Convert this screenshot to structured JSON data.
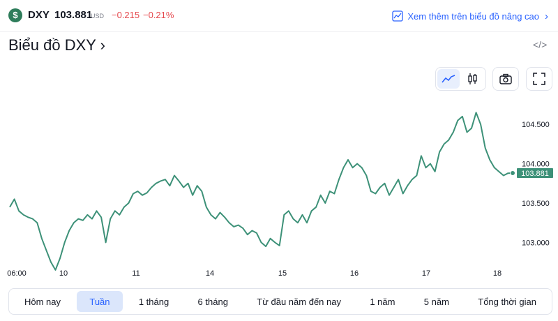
{
  "header": {
    "icon": "dollar-icon",
    "symbol": "DXY",
    "price": "103.881",
    "currency": "USD",
    "change": "−0.215",
    "change_percent": "−0.21%",
    "advanced_chart_label": "Xem thêm trên biểu đồ nâng cao"
  },
  "title": "Biểu đồ DXY ›",
  "embed_icon": "</>",
  "toolbar": [
    "line-chart-icon",
    "candles-icon",
    "camera-icon",
    "fullscreen-icon"
  ],
  "colors": {
    "line": "#3d9178",
    "negative": "#e5484d",
    "accent": "#2962ff",
    "active_range_bg": "#dbe6fb"
  },
  "chart_data": {
    "type": "line",
    "x_labels": [
      "06:00",
      "10",
      "11",
      "14",
      "15",
      "16",
      "17",
      "18"
    ],
    "y_ticks": [
      "104.500",
      "104.000",
      "103.500",
      "103.000"
    ],
    "ylim": [
      102.8,
      104.75
    ],
    "last_value_label": "103.881",
    "series": [
      {
        "values": [
          103.45,
          103.55,
          103.4,
          103.35,
          103.32,
          103.3,
          103.25,
          103.05,
          102.9,
          102.75,
          102.65,
          102.8,
          103.0,
          103.15,
          103.25,
          103.3,
          103.28,
          103.35,
          103.3,
          103.4,
          103.32,
          103.0,
          103.3,
          103.4,
          103.35,
          103.45,
          103.5,
          103.62,
          103.65,
          103.6,
          103.63,
          103.7,
          103.75,
          103.78,
          103.8,
          103.72,
          103.85,
          103.78,
          103.7,
          103.75,
          103.6,
          103.72,
          103.65,
          103.45,
          103.35,
          103.3,
          103.38,
          103.32,
          103.25,
          103.2,
          103.22,
          103.18,
          103.1,
          103.15,
          103.12,
          103.0,
          102.95,
          103.05,
          103.0,
          102.96,
          103.35,
          103.4,
          103.3,
          103.25,
          103.35,
          103.25,
          103.4,
          103.45,
          103.6,
          103.5,
          103.65,
          103.62,
          103.8,
          103.95,
          104.05,
          103.95,
          104.0,
          103.95,
          103.85,
          103.65,
          103.62,
          103.7,
          103.75,
          103.6,
          103.7,
          103.8,
          103.62,
          103.72,
          103.8,
          103.85,
          104.1,
          103.95,
          104.0,
          103.9,
          104.15,
          104.25,
          104.3,
          104.4,
          104.55,
          104.6,
          104.4,
          104.45,
          104.65,
          104.5,
          104.2,
          104.05,
          103.95,
          103.9,
          103.85,
          103.88,
          103.881
        ]
      }
    ]
  },
  "ranges": {
    "items": [
      "Hôm nay",
      "Tuần",
      "1 tháng",
      "6 tháng",
      "Từ đầu năm đến nay",
      "1 năm",
      "5 năm",
      "Tổng thời gian"
    ],
    "active_index": 1
  }
}
